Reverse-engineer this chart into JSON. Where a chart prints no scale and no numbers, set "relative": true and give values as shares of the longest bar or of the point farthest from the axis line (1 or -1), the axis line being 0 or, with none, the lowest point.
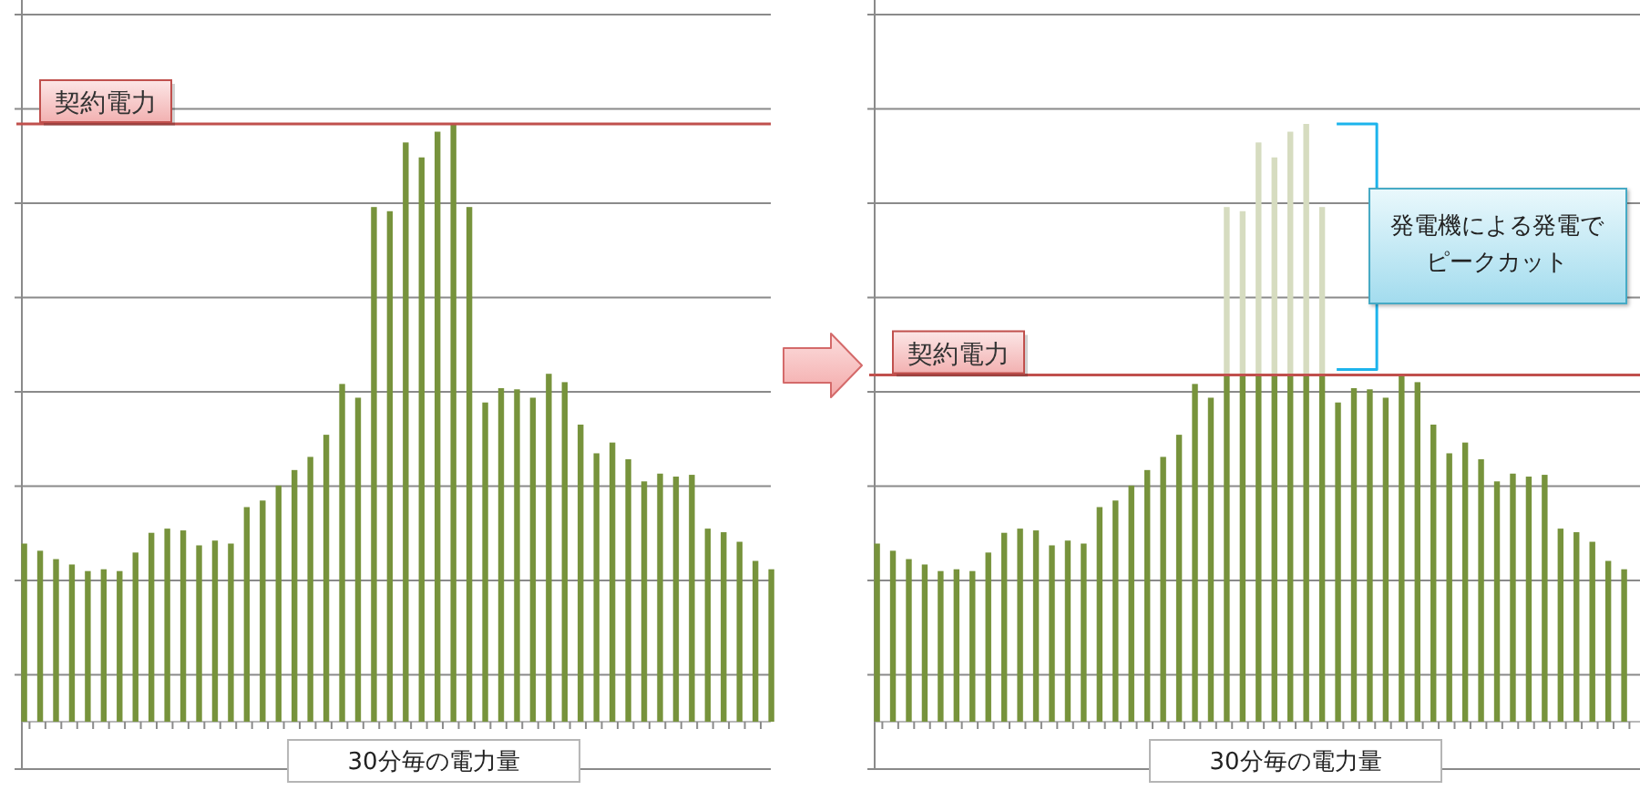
{
  "chart_data": [
    {
      "type": "bar",
      "relative": true,
      "grid": "y",
      "xlabel": "30分毎の電力量",
      "color": "#77933c",
      "categories": [
        null,
        null,
        null,
        null,
        null,
        null,
        null,
        null,
        null,
        null,
        null,
        null,
        null,
        null,
        null,
        null,
        null,
        null,
        null,
        null,
        null,
        null,
        null,
        null,
        null,
        null,
        null,
        null,
        null,
        null,
        null,
        null,
        null,
        null,
        null,
        null,
        null,
        null,
        null,
        null,
        null,
        null,
        null,
        null,
        null,
        null,
        null,
        null
      ],
      "values": [
        0.298,
        0.286,
        0.272,
        0.263,
        0.252,
        0.255,
        0.252,
        0.283,
        0.316,
        0.323,
        0.32,
        0.295,
        0.303,
        0.298,
        0.359,
        0.37,
        0.395,
        0.421,
        0.443,
        0.48,
        0.565,
        0.542,
        0.861,
        0.854,
        0.969,
        0.944,
        0.987,
        1,
        0.861,
        0.534,
        0.558,
        0.556,
        0.542,
        0.582,
        0.568,
        0.497,
        0.449,
        0.467,
        0.439,
        0.402,
        0.415,
        0.41,
        0.413,
        0.323,
        0.317,
        0.301,
        0.269,
        0.255
      ],
      "ref_lines": [
        {
          "axis": "y",
          "value": 1,
          "label": "契約電力",
          "color": "#c0504d"
        }
      ]
    },
    {
      "type": "bar",
      "relative": true,
      "stacked": true,
      "grid": "y",
      "xlabel": "30分毎の電力量",
      "categories": [
        null,
        null,
        null,
        null,
        null,
        null,
        null,
        null,
        null,
        null,
        null,
        null,
        null,
        null,
        null,
        null,
        null,
        null,
        null,
        null,
        null,
        null,
        null,
        null,
        null,
        null,
        null,
        null,
        null,
        null,
        null,
        null,
        null,
        null,
        null,
        null,
        null,
        null,
        null,
        null,
        null,
        null,
        null,
        null,
        null,
        null,
        null,
        null
      ],
      "series": [
        {
          "color": "#77933c",
          "values": [
            0.298,
            0.286,
            0.272,
            0.263,
            0.252,
            0.255,
            0.252,
            0.283,
            0.316,
            0.323,
            0.32,
            0.295,
            0.303,
            0.298,
            0.359,
            0.37,
            0.395,
            0.421,
            0.443,
            0.48,
            0.565,
            0.542,
            0.58,
            0.58,
            0.58,
            0.58,
            0.58,
            0.58,
            0.58,
            0.534,
            0.558,
            0.556,
            0.542,
            0.582,
            0.568,
            0.497,
            0.449,
            0.467,
            0.439,
            0.402,
            0.415,
            0.41,
            0.413,
            0.323,
            0.317,
            0.301,
            0.269,
            0.255
          ]
        },
        {
          "color": "#d6dcc0",
          "values": [
            null,
            null,
            null,
            null,
            null,
            null,
            null,
            null,
            null,
            null,
            null,
            null,
            null,
            null,
            null,
            null,
            null,
            null,
            null,
            null,
            null,
            null,
            0.281,
            0.274,
            0.389,
            0.364,
            0.407,
            0.42,
            0.281,
            null,
            null,
            null,
            null,
            null,
            null,
            null,
            null,
            null,
            null,
            null,
            null,
            null,
            null,
            null,
            null,
            null,
            null,
            null
          ]
        }
      ],
      "ref_lines": [
        {
          "axis": "y",
          "value": 0.58,
          "label": "契約電力",
          "color": "#c0504d"
        }
      ],
      "annotations": [
        "発電機による発電でピークカット"
      ]
    }
  ]
}
